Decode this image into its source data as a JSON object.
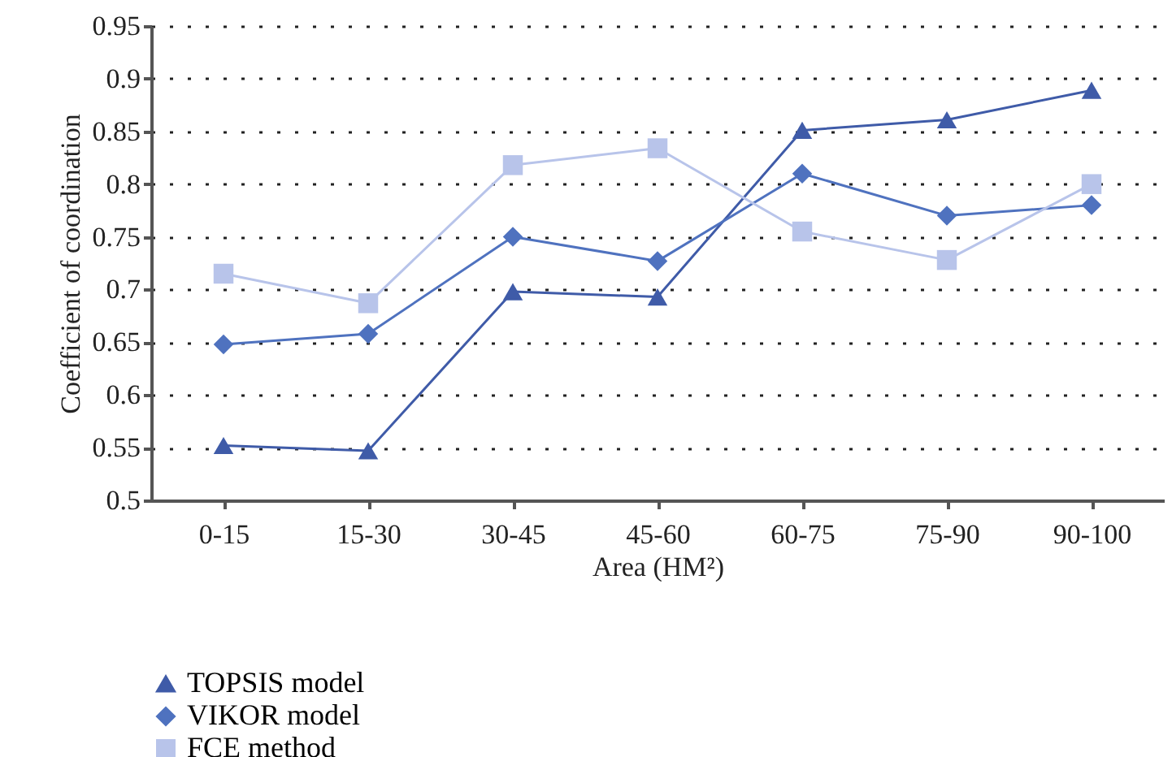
{
  "chart_data": {
    "type": "line",
    "xlabel": "Area (HM²)",
    "ylabel": "Coefficient of coordination",
    "categories": [
      "0-15",
      "15-30",
      "30-45",
      "45-60",
      "60-75",
      "75-90",
      "90-100"
    ],
    "series": [
      {
        "name": "TOPSIS model",
        "color": "#3f5ba8",
        "marker": "triangle",
        "values": [
          0.552,
          0.547,
          0.698,
          0.693,
          0.851,
          0.861,
          0.889
        ]
      },
      {
        "name": "VIKOR model",
        "color": "#4f72bf",
        "marker": "diamond",
        "values": [
          0.648,
          0.658,
          0.75,
          0.727,
          0.81,
          0.77,
          0.78
        ]
      },
      {
        "name": "FCE method",
        "color": "#b8c4ea",
        "marker": "square",
        "values": [
          0.715,
          0.687,
          0.818,
          0.834,
          0.755,
          0.728,
          0.8
        ]
      }
    ],
    "ylim": [
      0.5,
      0.95
    ],
    "yticks": [
      0.5,
      0.55,
      0.6,
      0.65,
      0.7,
      0.75,
      0.8,
      0.85,
      0.9,
      0.95
    ],
    "grid": "y",
    "legend": "bottom left",
    "line_style": "solid"
  }
}
